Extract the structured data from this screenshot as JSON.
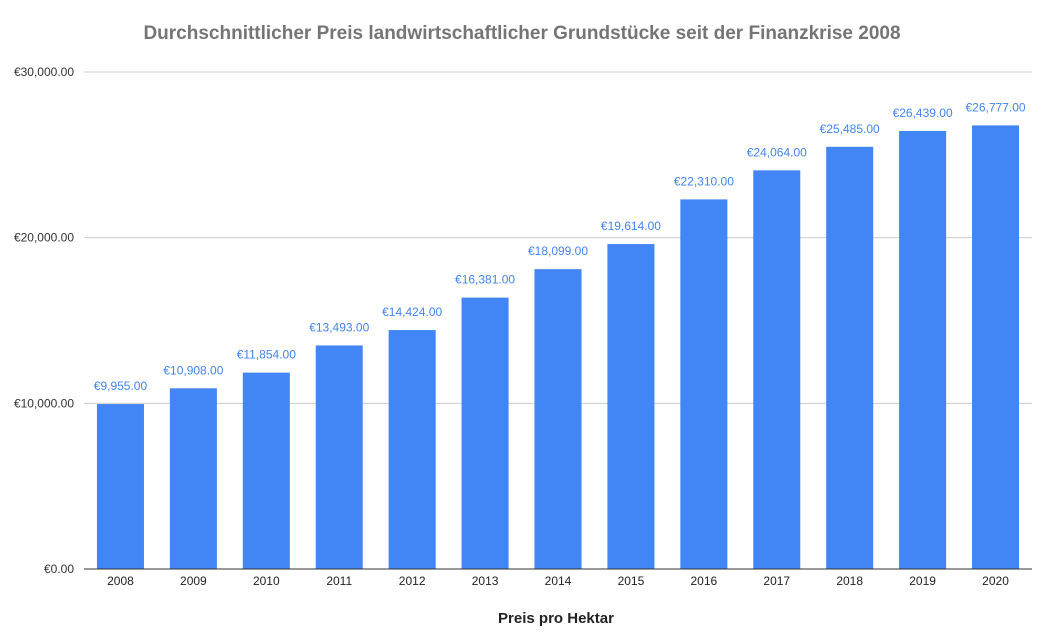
{
  "chart_data": {
    "type": "bar",
    "title": "Durchschnittlicher Preis landwirtschaftlicher Grundstücke seit der Finanzkrise 2008",
    "xlabel": "Preis pro Hektar",
    "ylabel": "",
    "categories": [
      "2008",
      "2009",
      "2010",
      "2011",
      "2012",
      "2013",
      "2014",
      "2015",
      "2016",
      "2017",
      "2018",
      "2019",
      "2020"
    ],
    "values": [
      9955,
      10908,
      11854,
      13493,
      14424,
      16381,
      18099,
      19614,
      22310,
      24064,
      25485,
      26439,
      26777
    ],
    "data_labels": [
      "€9,955.00",
      "€10,908.00",
      "€11,854.00",
      "€13,493.00",
      "€14,424.00",
      "€16,381.00",
      "€18,099.00",
      "€19,614.00",
      "€22,310.00",
      "€24,064.00",
      "€25,485.00",
      "€26,439.00",
      "€26,777.00"
    ],
    "ylim": [
      0,
      30000
    ],
    "yticks": [
      0,
      10000,
      20000,
      30000
    ],
    "ytick_labels": [
      "€0.00",
      "€10,000.00",
      "€20,000.00",
      "€30,000.00"
    ],
    "grid": true,
    "legend": "none",
    "colors": {
      "bar": "#4285f4",
      "data_label": "#4285f4",
      "title": "#757575"
    }
  }
}
